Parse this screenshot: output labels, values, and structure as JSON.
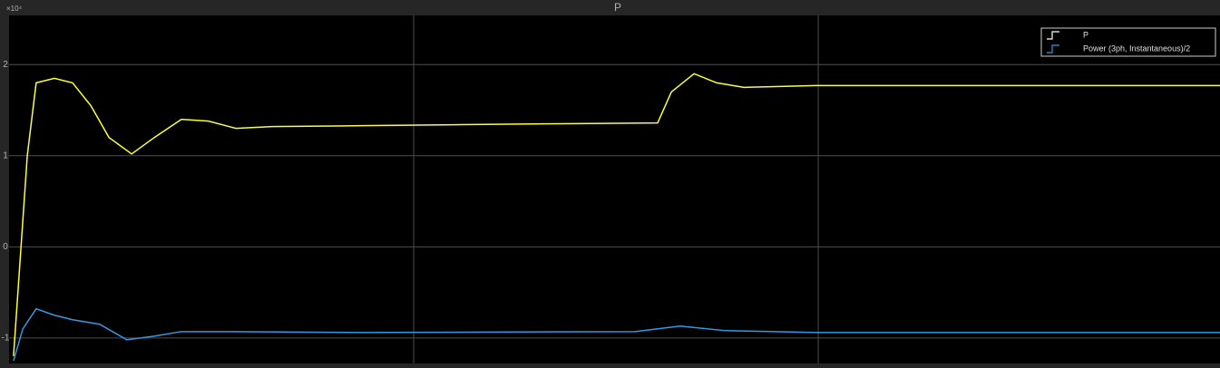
{
  "chart_data": {
    "type": "line",
    "title": "P",
    "y_exponent_label": "×10⁴",
    "xlim": [
      0,
      2.993
    ],
    "xticks": [
      1,
      2
    ],
    "ylim": [
      -1.28,
      2.54
    ],
    "yticks": [
      -1,
      0,
      1,
      2
    ],
    "grid": true,
    "legend": "upper right",
    "series": [
      {
        "name": "P",
        "color": "#ffff33",
        "legend_color": "#ffffff",
        "x": [
          0.011,
          0.045,
          0.067,
          0.112,
          0.157,
          0.202,
          0.247,
          0.303,
          0.359,
          0.426,
          0.493,
          0.561,
          0.65,
          0.874,
          1.099,
          1.323,
          1.603,
          1.637,
          1.693,
          1.749,
          1.816,
          1.996,
          2.444,
          2.993
        ],
        "values": [
          -1.2,
          1.0,
          1.8,
          1.85,
          1.8,
          1.55,
          1.2,
          1.02,
          1.2,
          1.4,
          1.38,
          1.3,
          1.32,
          1.33,
          1.34,
          1.35,
          1.36,
          1.7,
          1.9,
          1.8,
          1.75,
          1.77,
          1.77,
          1.77
        ]
      },
      {
        "name": "Power (3ph, Instantaneous)/2",
        "color": "#3399e6",
        "legend_color": "#3399e6",
        "x": [
          0.011,
          0.034,
          0.067,
          0.112,
          0.157,
          0.224,
          0.291,
          0.359,
          0.426,
          0.538,
          0.874,
          1.547,
          1.659,
          1.771,
          1.996,
          2.993
        ],
        "values": [
          -1.25,
          -0.9,
          -0.68,
          -0.75,
          -0.8,
          -0.85,
          -1.02,
          -0.98,
          -0.93,
          -0.93,
          -0.94,
          -0.93,
          -0.87,
          -0.92,
          -0.94,
          -0.94
        ]
      }
    ]
  }
}
